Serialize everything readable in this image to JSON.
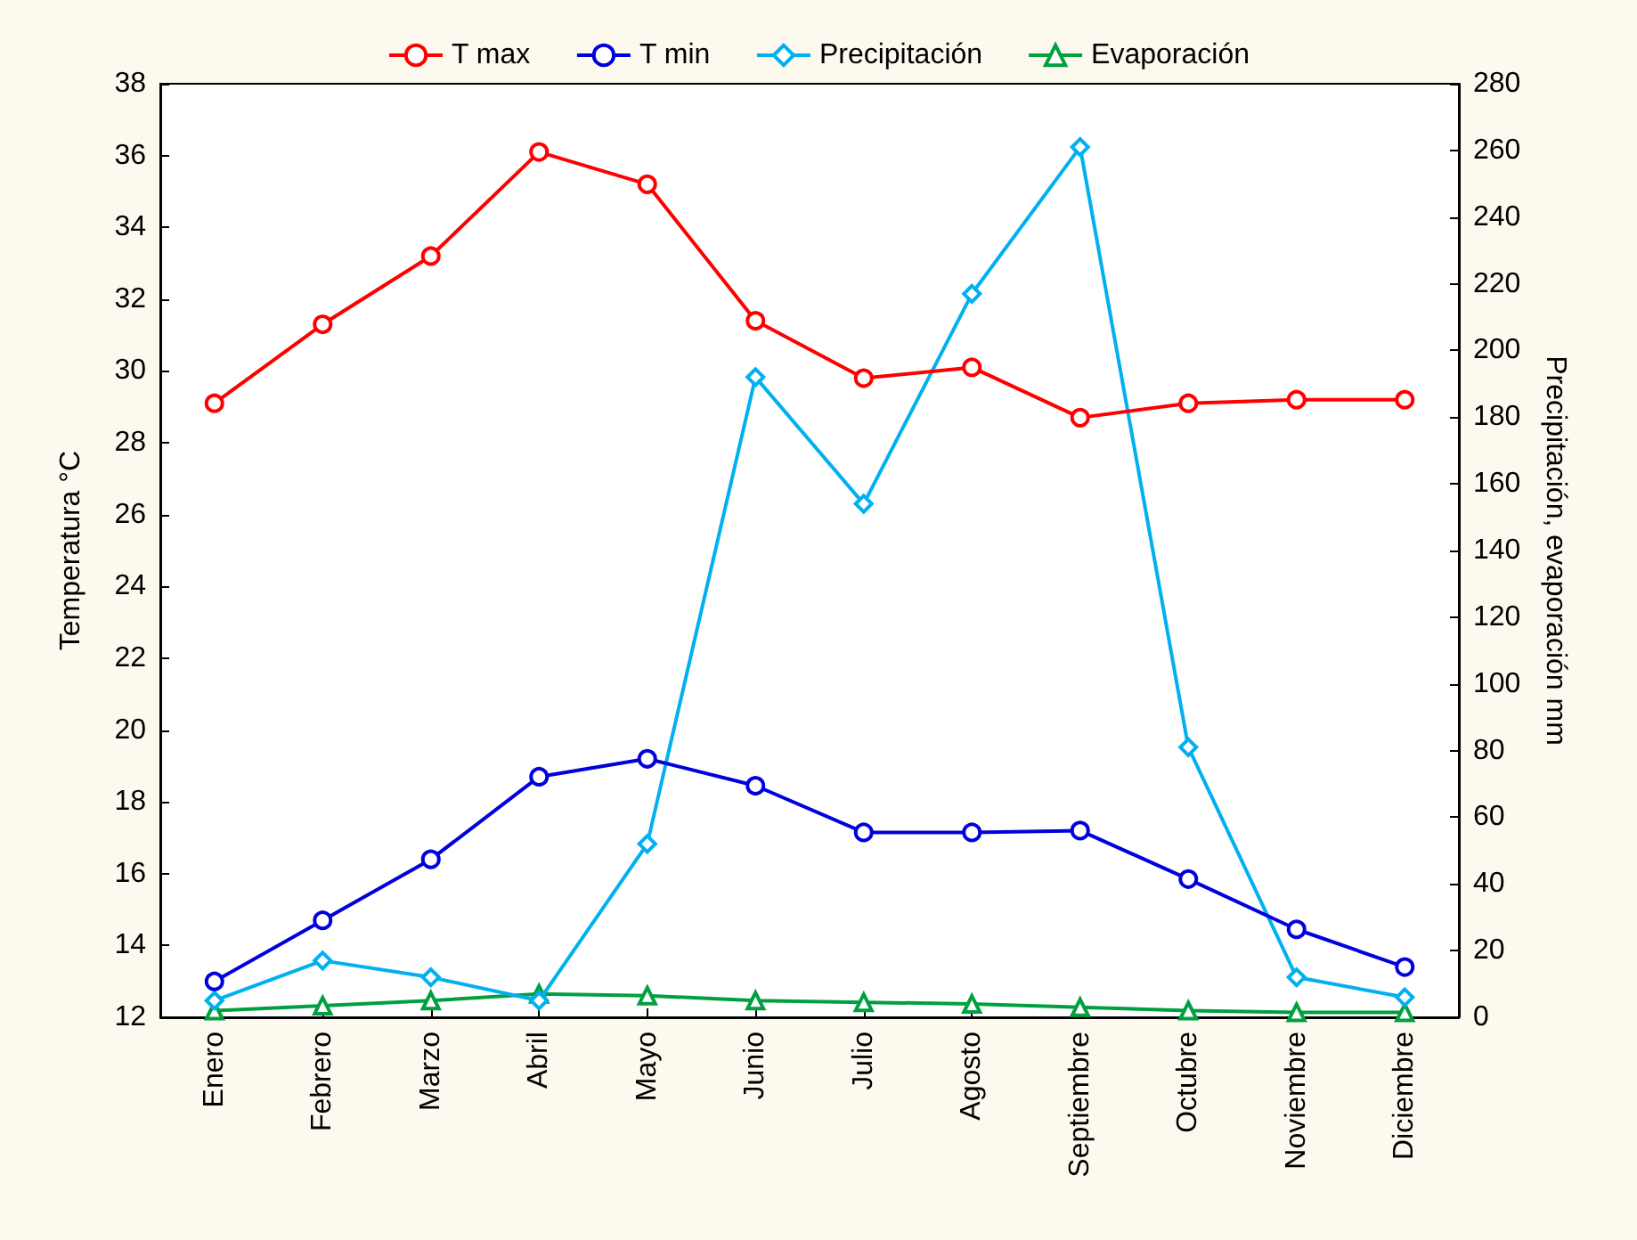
{
  "chart_data": {
    "type": "line",
    "ylabel": "Temperatura °C",
    "y2label": "Precipitación, evaporación mm",
    "categories": [
      "Enero",
      "Febrero",
      "Marzo",
      "Abril",
      "Mayo",
      "Junio",
      "Julio",
      "Agosto",
      "Septiembre",
      "Octubre",
      "Noviembre",
      "Diciembre"
    ],
    "series": [
      {
        "name": "T max",
        "color": "#ff0000",
        "marker": "circle",
        "values": [
          29.1,
          31.3,
          33.2,
          36.1,
          35.2,
          31.4,
          29.8,
          30.1,
          28.7,
          29.1,
          29.2,
          29.2
        ]
      },
      {
        "name": "T min",
        "color": "#0000dd",
        "marker": "circle",
        "values": [
          13.0,
          14.7,
          16.4,
          18.7,
          19.2,
          18.45,
          17.15,
          17.15,
          17.2,
          15.85,
          14.45,
          13.4
        ]
      },
      {
        "name": "Precipitación",
        "color": "#00b0f0",
        "marker": "diamond",
        "axis": "y2",
        "values": [
          5,
          17,
          12,
          5,
          52,
          192,
          154,
          217,
          261,
          81,
          12,
          6
        ]
      },
      {
        "name": "Evaporación",
        "color": "#00a040",
        "marker": "triangle",
        "axis": "y2",
        "values": [
          2,
          3.5,
          5,
          7,
          6.5,
          5,
          4.5,
          4,
          3,
          2,
          1.5,
          1.5
        ]
      }
    ],
    "ylim": [
      12,
      38
    ],
    "yticks": [
      12,
      14,
      16,
      18,
      20,
      22,
      24,
      26,
      28,
      30,
      32,
      34,
      36,
      38
    ],
    "y2lim": [
      0,
      280
    ],
    "y2ticks": [
      0,
      20,
      40,
      60,
      80,
      100,
      120,
      140,
      160,
      180,
      200,
      220,
      240,
      260,
      280
    ],
    "legend": "top",
    "grid": false
  }
}
